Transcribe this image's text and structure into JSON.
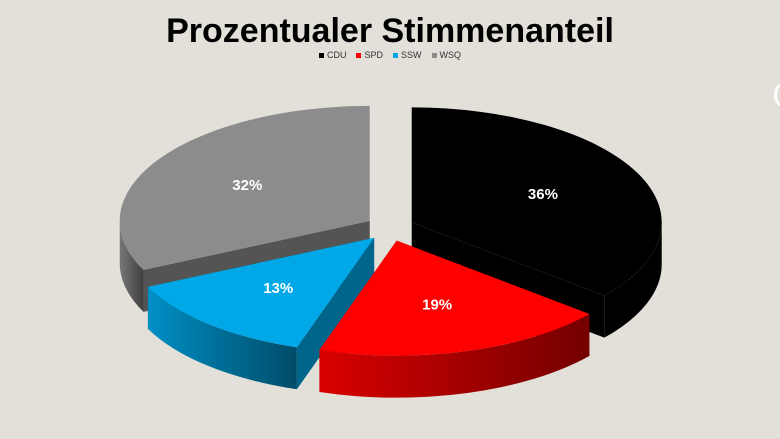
{
  "chart_data": {
    "type": "pie",
    "title": "Prozentualer Stimmenanteil",
    "categories": [
      "CDU",
      "SPD",
      "SSW",
      "WSQ"
    ],
    "values": [
      36,
      19,
      13,
      32
    ],
    "labels": [
      "36%",
      "19%",
      "13%",
      "32%"
    ],
    "colors": [
      "#000000",
      "#ff0000",
      "#00a8e8",
      "#8c8c8c"
    ],
    "legend": "top",
    "exploded": true,
    "three_d": true
  }
}
